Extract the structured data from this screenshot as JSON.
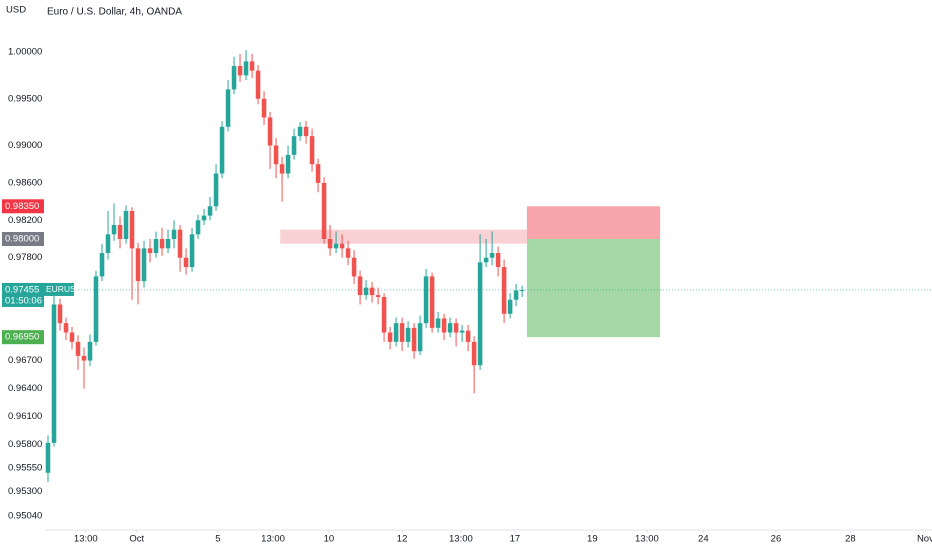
{
  "header": {
    "currency": "USD",
    "title": "Euro / U.S. Dollar, 4h, OANDA"
  },
  "chart_data": {
    "type": "candlestick",
    "up_color": "#26a69a",
    "down_color": "#ef5350",
    "open": [
      0.955,
      0.9582,
      0.973,
      0.971,
      0.97,
      0.969,
      0.9675,
      0.967,
      0.969,
      0.976,
      0.9785,
      0.9805,
      0.9815,
      0.98,
      0.983,
      0.979,
      0.9755,
      0.979,
      0.9785,
      0.98,
      0.979,
      0.98,
      0.981,
      0.978,
      0.977,
      0.9805,
      0.982,
      0.9825,
      0.9835,
      0.987,
      0.992,
      0.996,
      0.9985,
      0.9975,
      0.999,
      0.998,
      0.995,
      0.993,
      0.99,
      0.988,
      0.987,
      0.989,
      0.991,
      0.992,
      0.991,
      0.988,
      0.986,
      0.98,
      0.979,
      0.9795,
      0.979,
      0.978,
      0.976,
      0.974,
      0.9748,
      0.974,
      0.9738,
      0.97,
      0.969,
      0.971,
      0.969,
      0.9705,
      0.968,
      0.971,
      0.976,
      0.9705,
      0.9715,
      0.97,
      0.971,
      0.97,
      0.9702,
      0.969,
      0.9665,
      0.9775,
      0.978,
      0.9785,
      0.977,
      0.972,
      0.9735,
      0.9745
    ],
    "high": [
      0.959,
      0.974,
      0.9736,
      0.9716,
      0.9706,
      0.9697,
      0.9684,
      0.9698,
      0.9766,
      0.9795,
      0.983,
      0.9838,
      0.9824,
      0.9836,
      0.9834,
      0.9796,
      0.9798,
      0.98,
      0.9808,
      0.9812,
      0.981,
      0.982,
      0.9815,
      0.979,
      0.9812,
      0.9826,
      0.9832,
      0.9845,
      0.988,
      0.9926,
      0.997,
      0.9995,
      0.9998,
      1.0002,
      0.9998,
      0.9986,
      0.9958,
      0.9936,
      0.9908,
      0.9888,
      0.99,
      0.9918,
      0.9925,
      0.9926,
      0.9918,
      0.9886,
      0.9866,
      0.9815,
      0.9808,
      0.9805,
      0.9798,
      0.9788,
      0.9766,
      0.9756,
      0.9754,
      0.9748,
      0.9742,
      0.9706,
      0.9716,
      0.9716,
      0.9712,
      0.971,
      0.9718,
      0.9768,
      0.9764,
      0.9722,
      0.972,
      0.9716,
      0.9715,
      0.9708,
      0.9708,
      0.9696,
      0.9805,
      0.98,
      0.9808,
      0.9792,
      0.9778,
      0.9742,
      0.9752,
      0.975
    ],
    "low": [
      0.954,
      0.9578,
      0.9702,
      0.9692,
      0.9682,
      0.966,
      0.964,
      0.9664,
      0.9686,
      0.9755,
      0.9778,
      0.9798,
      0.979,
      0.9795,
      0.9735,
      0.973,
      0.9748,
      0.9775,
      0.978,
      0.9782,
      0.9785,
      0.979,
      0.9765,
      0.9762,
      0.9765,
      0.98,
      0.9815,
      0.982,
      0.983,
      0.9865,
      0.9915,
      0.9955,
      0.9968,
      0.997,
      0.9972,
      0.9944,
      0.9922,
      0.9875,
      0.9865,
      0.984,
      0.9865,
      0.9885,
      0.9905,
      0.9902,
      0.9872,
      0.985,
      0.9795,
      0.9782,
      0.9785,
      0.978,
      0.9772,
      0.9752,
      0.973,
      0.9735,
      0.9732,
      0.973,
      0.969,
      0.9682,
      0.9685,
      0.968,
      0.9684,
      0.9672,
      0.9676,
      0.9705,
      0.97,
      0.97,
      0.9692,
      0.9695,
      0.9685,
      0.969,
      0.968,
      0.9635,
      0.966,
      0.977,
      0.9772,
      0.976,
      0.971,
      0.9715,
      0.9728,
      0.9738
    ],
    "close": [
      0.9582,
      0.973,
      0.971,
      0.97,
      0.969,
      0.9675,
      0.967,
      0.969,
      0.976,
      0.9785,
      0.9805,
      0.9815,
      0.98,
      0.983,
      0.979,
      0.9755,
      0.979,
      0.9785,
      0.98,
      0.979,
      0.98,
      0.981,
      0.978,
      0.977,
      0.9805,
      0.982,
      0.9825,
      0.9835,
      0.987,
      0.992,
      0.996,
      0.9985,
      0.9975,
      0.999,
      0.998,
      0.995,
      0.993,
      0.99,
      0.988,
      0.987,
      0.989,
      0.991,
      0.992,
      0.991,
      0.988,
      0.986,
      0.98,
      0.979,
      0.9795,
      0.979,
      0.978,
      0.976,
      0.974,
      0.9748,
      0.974,
      0.9738,
      0.97,
      0.969,
      0.971,
      0.969,
      0.9705,
      0.968,
      0.971,
      0.976,
      0.9705,
      0.9715,
      0.97,
      0.971,
      0.97,
      0.9702,
      0.969,
      0.9665,
      0.9775,
      0.978,
      0.9785,
      0.977,
      0.972,
      0.9735,
      0.9745,
      0.97455
    ],
    "xlim": [
      -0.5,
      147.3
    ],
    "xticks": [
      {
        "value": 6.3,
        "label": "13:00"
      },
      {
        "value": 14.8,
        "label": "Oct"
      },
      {
        "value": 28.3,
        "label": "5"
      },
      {
        "value": 37.5,
        "label": "13:00"
      },
      {
        "value": 46.8,
        "label": "10"
      },
      {
        "value": 59,
        "label": "12"
      },
      {
        "value": 68.8,
        "label": "13:00"
      },
      {
        "value": 77.8,
        "label": "17"
      },
      {
        "value": 90.7,
        "label": "19"
      },
      {
        "value": 99.8,
        "label": "13:00"
      },
      {
        "value": 109.2,
        "label": "24"
      },
      {
        "value": 121.3,
        "label": "26"
      },
      {
        "value": 133.7,
        "label": "28"
      },
      {
        "value": 146.2,
        "label": "Nov"
      }
    ],
    "ylim": [
      0.94888,
      1.00556
    ],
    "yticks": [
      {
        "value": 1.0,
        "label": "1.00000"
      },
      {
        "value": 0.995,
        "label": "0.99500"
      },
      {
        "value": 0.99,
        "label": "0.99000"
      },
      {
        "value": 0.986,
        "label": "0.98600"
      },
      {
        "value": 0.982,
        "label": "0.98200"
      },
      {
        "value": 0.978,
        "label": "0.97800"
      },
      {
        "value": 0.967,
        "label": "0.96700"
      },
      {
        "value": 0.964,
        "label": "0.96400"
      },
      {
        "value": 0.961,
        "label": "0.96100"
      },
      {
        "value": 0.958,
        "label": "0.95800"
      },
      {
        "value": 0.9555,
        "label": "0.95550"
      },
      {
        "value": 0.953,
        "label": "0.95300"
      },
      {
        "value": 0.9504,
        "label": "0.95040"
      }
    ],
    "zone": {
      "low": 0.9795,
      "high": 0.981,
      "start": 38.7,
      "end": 79.8,
      "color": "#f9d0d3"
    },
    "position": {
      "stop": 0.9835,
      "entry": 0.98,
      "target": 0.9695,
      "start": 79.8,
      "end": 102,
      "stop_color": "#f7a5ab",
      "target_color": "#a5d8a6"
    },
    "price_labels": [
      {
        "value": 0.9835,
        "label": "0.98350",
        "color": "#f23645"
      },
      {
        "value": 0.98,
        "label": "0.98000",
        "color": "#787b86"
      },
      {
        "value": 0.9695,
        "label": "0.96950",
        "color": "#4caf50"
      },
      {
        "value": 0.97455,
        "label": "0.97455",
        "color": "#26a69a"
      }
    ],
    "symbol": "EURUSD",
    "countdown": "01:50:06"
  }
}
